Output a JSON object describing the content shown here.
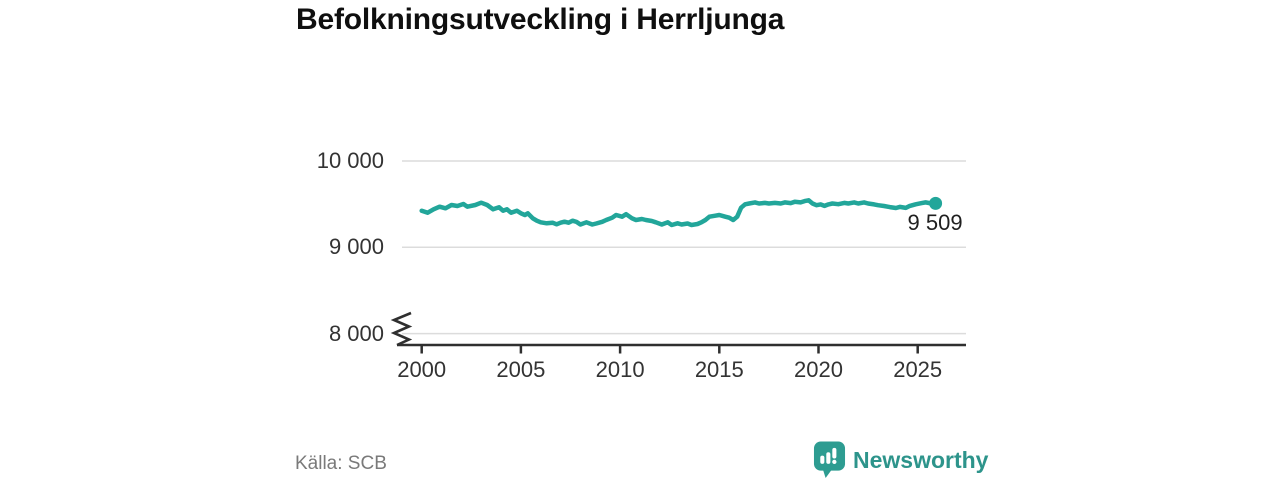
{
  "title": "Befolkningsutveckling i Herrljunga",
  "source": "Källa: SCB",
  "branding": {
    "name": "Newsworthy",
    "icon": "newsworthy-speech-bubble-barchart-icon",
    "color": "#2d948b",
    "icon_fill": "#2d9c91"
  },
  "colors": {
    "line": "#22a69a",
    "grid": "#dcdcdc",
    "axis": "#2f2f2f",
    "tick_text": "#333333",
    "muted_text": "#7a7a7a"
  },
  "chart_data": {
    "type": "line",
    "title": "Befolkningsutveckling i Herrljunga",
    "xlabel": "",
    "ylabel": "",
    "x_ticks": [
      {
        "year": 2000,
        "label": "2000"
      },
      {
        "year": 2005,
        "label": "2005"
      },
      {
        "year": 2010,
        "label": "2010"
      },
      {
        "year": 2015,
        "label": "2015"
      },
      {
        "year": 2020,
        "label": "2020"
      },
      {
        "year": 2025,
        "label": "2025"
      }
    ],
    "y_ticks": [
      {
        "value": 10000,
        "label": "10 000"
      },
      {
        "value": 9000,
        "label": "9 000"
      },
      {
        "value": 8000,
        "label": "8 000"
      }
    ],
    "axis_break_at_bottom": true,
    "xlim": [
      2000,
      2026.5
    ],
    "ylim_shown": [
      8000,
      10000
    ],
    "grid": "horizontal",
    "legend": "none",
    "end_point": {
      "value": 9509,
      "label": "9 509"
    },
    "series": [
      {
        "name": "Befolkning",
        "points": [
          [
            2000.0,
            9424
          ],
          [
            2000.3,
            9401
          ],
          [
            2000.6,
            9440
          ],
          [
            2000.9,
            9471
          ],
          [
            2001.2,
            9452
          ],
          [
            2001.5,
            9490
          ],
          [
            2001.8,
            9479
          ],
          [
            2002.1,
            9502
          ],
          [
            2002.3,
            9471
          ],
          [
            2002.7,
            9490
          ],
          [
            2003.0,
            9517
          ],
          [
            2003.3,
            9490
          ],
          [
            2003.6,
            9440
          ],
          [
            2003.9,
            9464
          ],
          [
            2004.1,
            9424
          ],
          [
            2004.3,
            9440
          ],
          [
            2004.5,
            9401
          ],
          [
            2004.8,
            9424
          ],
          [
            2005.0,
            9394
          ],
          [
            2005.2,
            9374
          ],
          [
            2005.35,
            9394
          ],
          [
            2005.6,
            9336
          ],
          [
            2005.8,
            9308
          ],
          [
            2006.0,
            9290
          ],
          [
            2006.3,
            9278
          ],
          [
            2006.6,
            9285
          ],
          [
            2006.8,
            9267
          ],
          [
            2007.0,
            9285
          ],
          [
            2007.2,
            9297
          ],
          [
            2007.4,
            9285
          ],
          [
            2007.6,
            9308
          ],
          [
            2007.8,
            9294
          ],
          [
            2008.0,
            9264
          ],
          [
            2008.3,
            9290
          ],
          [
            2008.6,
            9264
          ],
          [
            2008.8,
            9276
          ],
          [
            2009.1,
            9295
          ],
          [
            2009.3,
            9316
          ],
          [
            2009.6,
            9343
          ],
          [
            2009.8,
            9374
          ],
          [
            2010.1,
            9355
          ],
          [
            2010.3,
            9383
          ],
          [
            2010.6,
            9336
          ],
          [
            2010.8,
            9316
          ],
          [
            2011.1,
            9328
          ],
          [
            2011.3,
            9316
          ],
          [
            2011.6,
            9305
          ],
          [
            2011.8,
            9290
          ],
          [
            2012.1,
            9264
          ],
          [
            2012.4,
            9290
          ],
          [
            2012.6,
            9258
          ],
          [
            2012.9,
            9278
          ],
          [
            2013.1,
            9264
          ],
          [
            2013.4,
            9276
          ],
          [
            2013.6,
            9258
          ],
          [
            2013.9,
            9270
          ],
          [
            2014.1,
            9290
          ],
          [
            2014.3,
            9316
          ],
          [
            2014.5,
            9355
          ],
          [
            2014.8,
            9366
          ],
          [
            2015.0,
            9374
          ],
          [
            2015.3,
            9355
          ],
          [
            2015.5,
            9343
          ],
          [
            2015.7,
            9316
          ],
          [
            2015.9,
            9355
          ],
          [
            2016.1,
            9459
          ],
          [
            2016.3,
            9498
          ],
          [
            2016.5,
            9508
          ],
          [
            2016.8,
            9520
          ],
          [
            2017.0,
            9508
          ],
          [
            2017.3,
            9515
          ],
          [
            2017.5,
            9508
          ],
          [
            2017.8,
            9515
          ],
          [
            2018.1,
            9508
          ],
          [
            2018.3,
            9520
          ],
          [
            2018.6,
            9512
          ],
          [
            2018.8,
            9527
          ],
          [
            2019.1,
            9520
          ],
          [
            2019.3,
            9535
          ],
          [
            2019.5,
            9545
          ],
          [
            2019.7,
            9508
          ],
          [
            2019.9,
            9488
          ],
          [
            2020.1,
            9497
          ],
          [
            2020.3,
            9480
          ],
          [
            2020.5,
            9497
          ],
          [
            2020.7,
            9508
          ],
          [
            2021.0,
            9500
          ],
          [
            2021.3,
            9515
          ],
          [
            2021.5,
            9508
          ],
          [
            2021.8,
            9520
          ],
          [
            2022.0,
            9508
          ],
          [
            2022.3,
            9520
          ],
          [
            2022.5,
            9508
          ],
          [
            2022.8,
            9497
          ],
          [
            2023.0,
            9488
          ],
          [
            2023.3,
            9478
          ],
          [
            2023.6,
            9466
          ],
          [
            2023.9,
            9455
          ],
          [
            2024.1,
            9468
          ],
          [
            2024.4,
            9456
          ],
          [
            2024.6,
            9480
          ],
          [
            2024.9,
            9498
          ],
          [
            2025.2,
            9512
          ],
          [
            2025.4,
            9520
          ],
          [
            2025.6,
            9512
          ],
          [
            2025.9,
            9509
          ]
        ]
      }
    ]
  }
}
